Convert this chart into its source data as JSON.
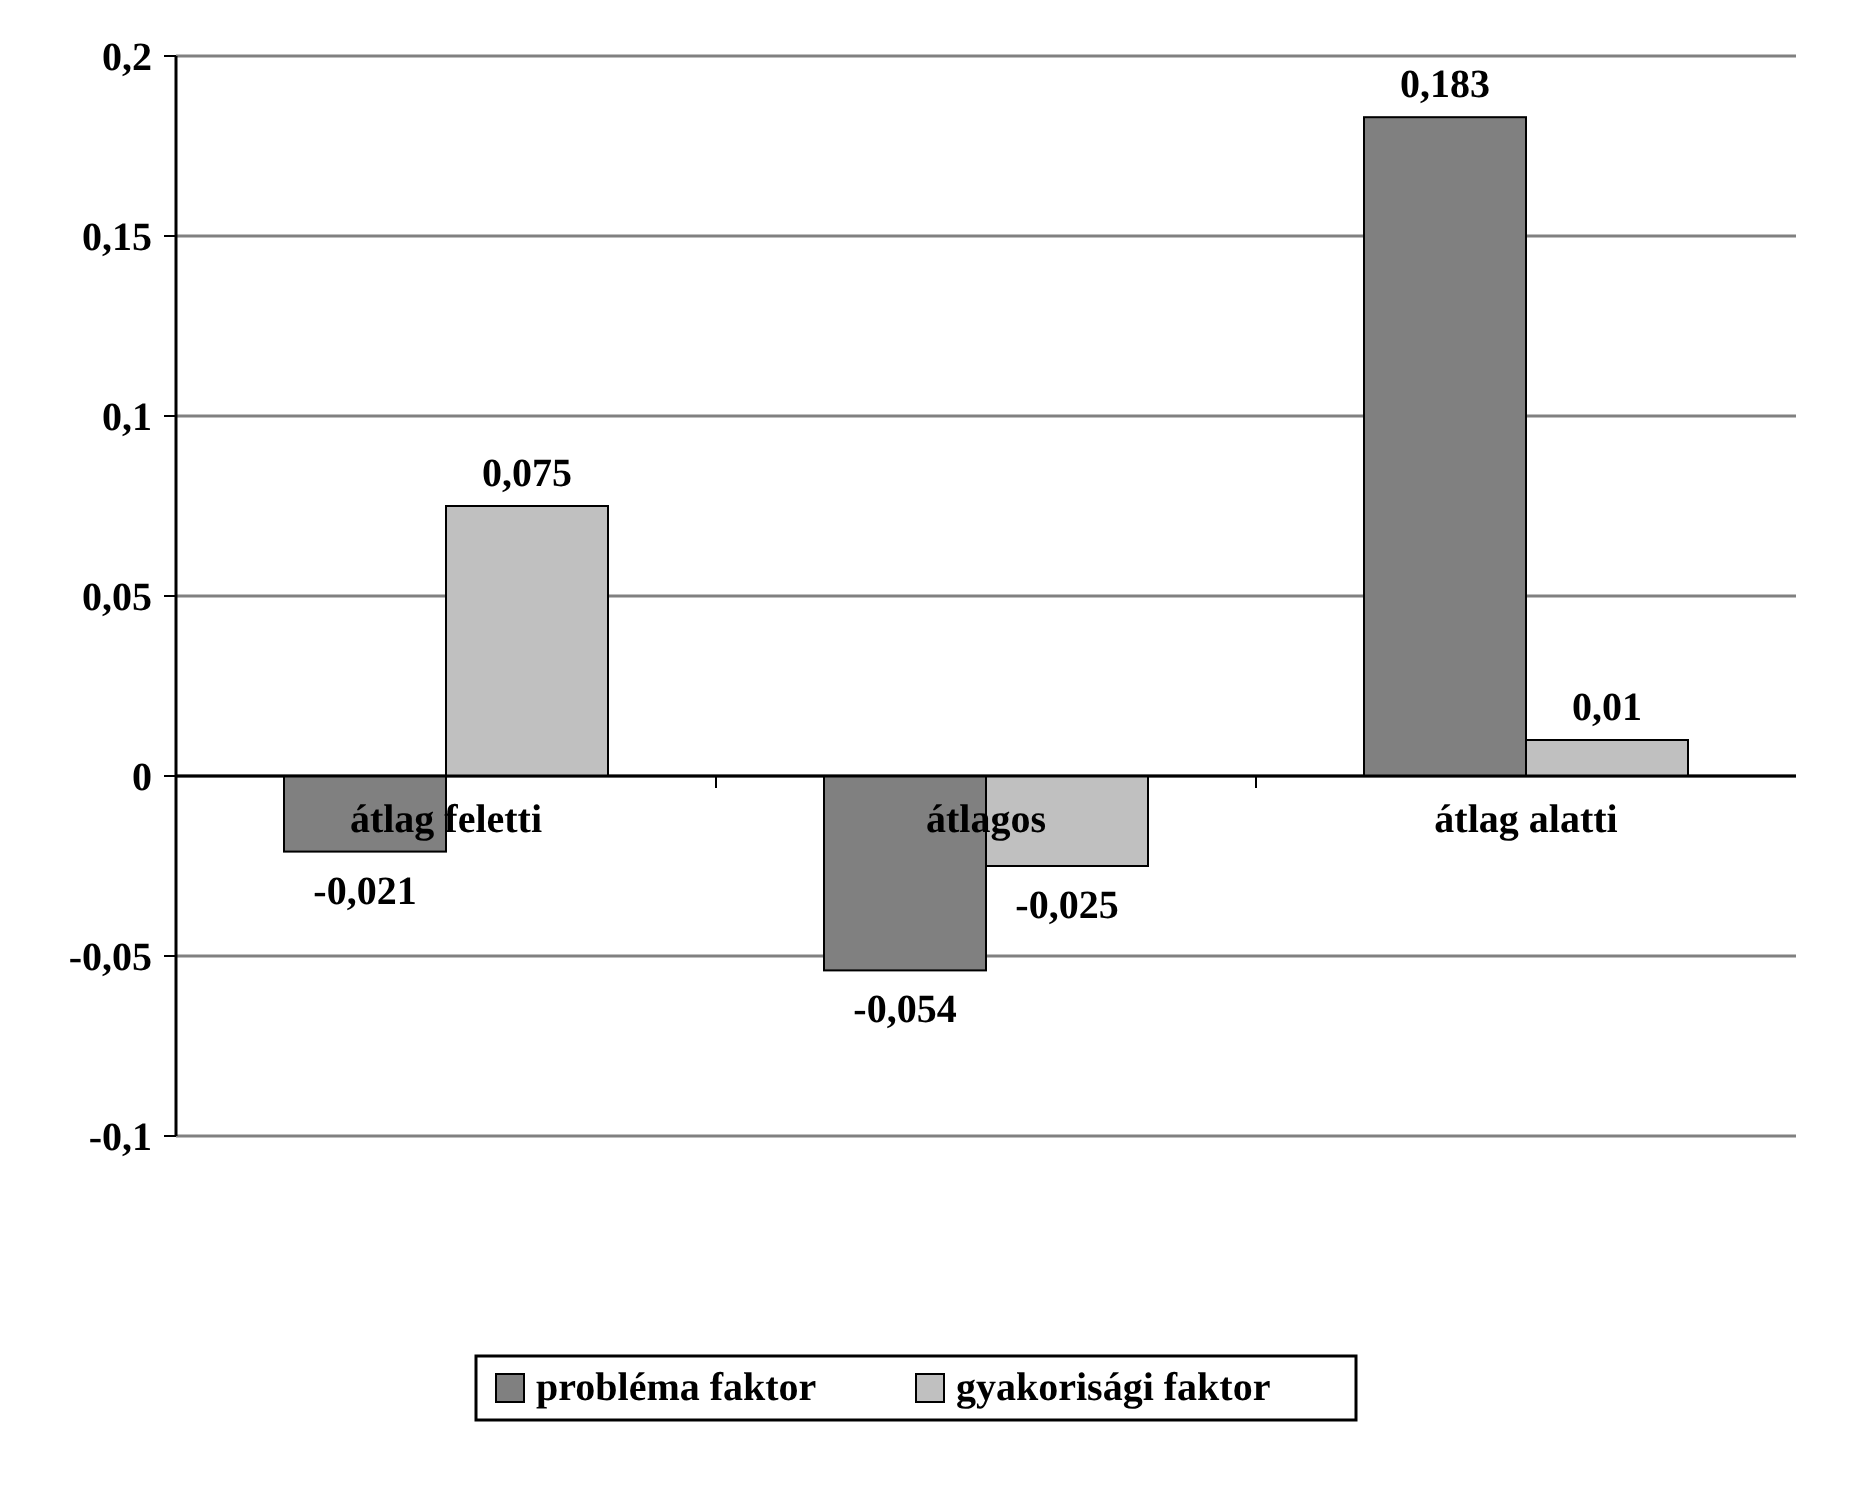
{
  "chart_data": {
    "type": "bar",
    "categories": [
      "átlag feletti",
      "átlagos",
      "átlag alatti"
    ],
    "series": [
      {
        "name": "probléma faktor",
        "color": "#808080",
        "values": [
          -0.021,
          -0.054,
          0.183
        ],
        "value_labels": [
          "-0,021",
          "-0,054",
          "0,183"
        ]
      },
      {
        "name": "gyakorisági faktor",
        "color": "#c0c0c0",
        "values": [
          0.075,
          -0.025,
          0.01
        ],
        "value_labels": [
          "0,075",
          "-0,025",
          "0,01"
        ]
      }
    ],
    "ylim": [
      -0.1,
      0.2
    ],
    "yticks": [
      {
        "value": -0.1,
        "label": "-0,1"
      },
      {
        "value": -0.05,
        "label": "-0,05"
      },
      {
        "value": 0,
        "label": "0"
      },
      {
        "value": 0.05,
        "label": "0,05"
      },
      {
        "value": 0.1,
        "label": "0,1"
      },
      {
        "value": 0.15,
        "label": "0,15"
      },
      {
        "value": 0.2,
        "label": "0,2"
      }
    ],
    "grid": "y",
    "legend": "bottom"
  }
}
